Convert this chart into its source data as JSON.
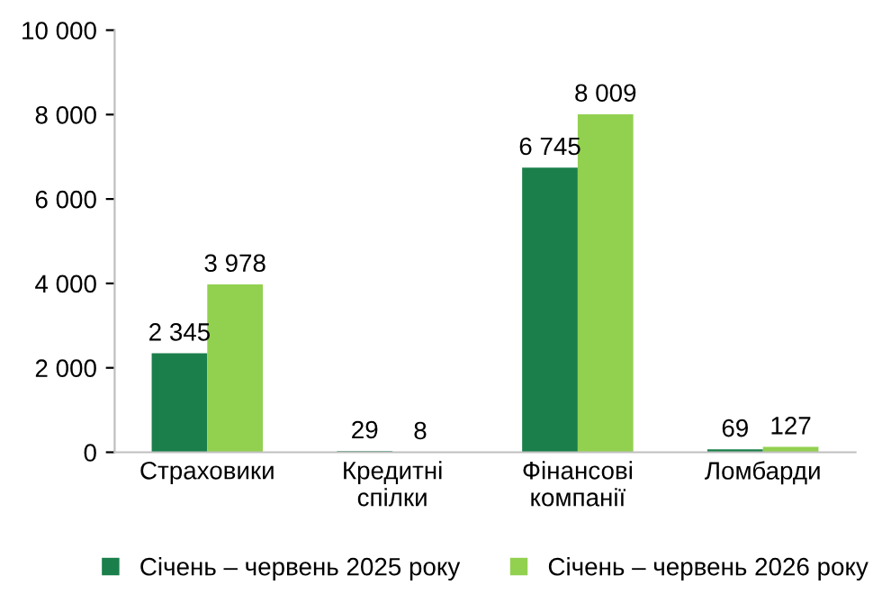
{
  "chart_data": {
    "type": "bar",
    "categories": [
      "Страховики",
      "Кредитні\nспілки",
      "Фінансові\nкомпанії",
      "Ломбарди"
    ],
    "series": [
      {
        "name": "Січень – червень 2025 року",
        "color": "#1a7f4b",
        "values": [
          2345,
          29,
          6745,
          69
        ],
        "value_labels": [
          "2 345",
          "29",
          "6 745",
          "69"
        ]
      },
      {
        "name": "Січень – червень 2026 року",
        "color": "#92d050",
        "values": [
          3978,
          8,
          8009,
          127
        ],
        "value_labels": [
          "3 978",
          "8",
          "8 009",
          "127"
        ]
      }
    ],
    "ylim": [
      0,
      10000
    ],
    "yticks": [
      0,
      {
        "value": 2000,
        "label": "2 000"
      },
      {
        "value": 4000,
        "label": "4 000"
      },
      {
        "value": 6000,
        "label": "6 000"
      },
      {
        "value": 8000,
        "label": "8 000"
      },
      {
        "value": 10000,
        "label": "10 000"
      }
    ],
    "grid": false,
    "legend": "bottom"
  }
}
